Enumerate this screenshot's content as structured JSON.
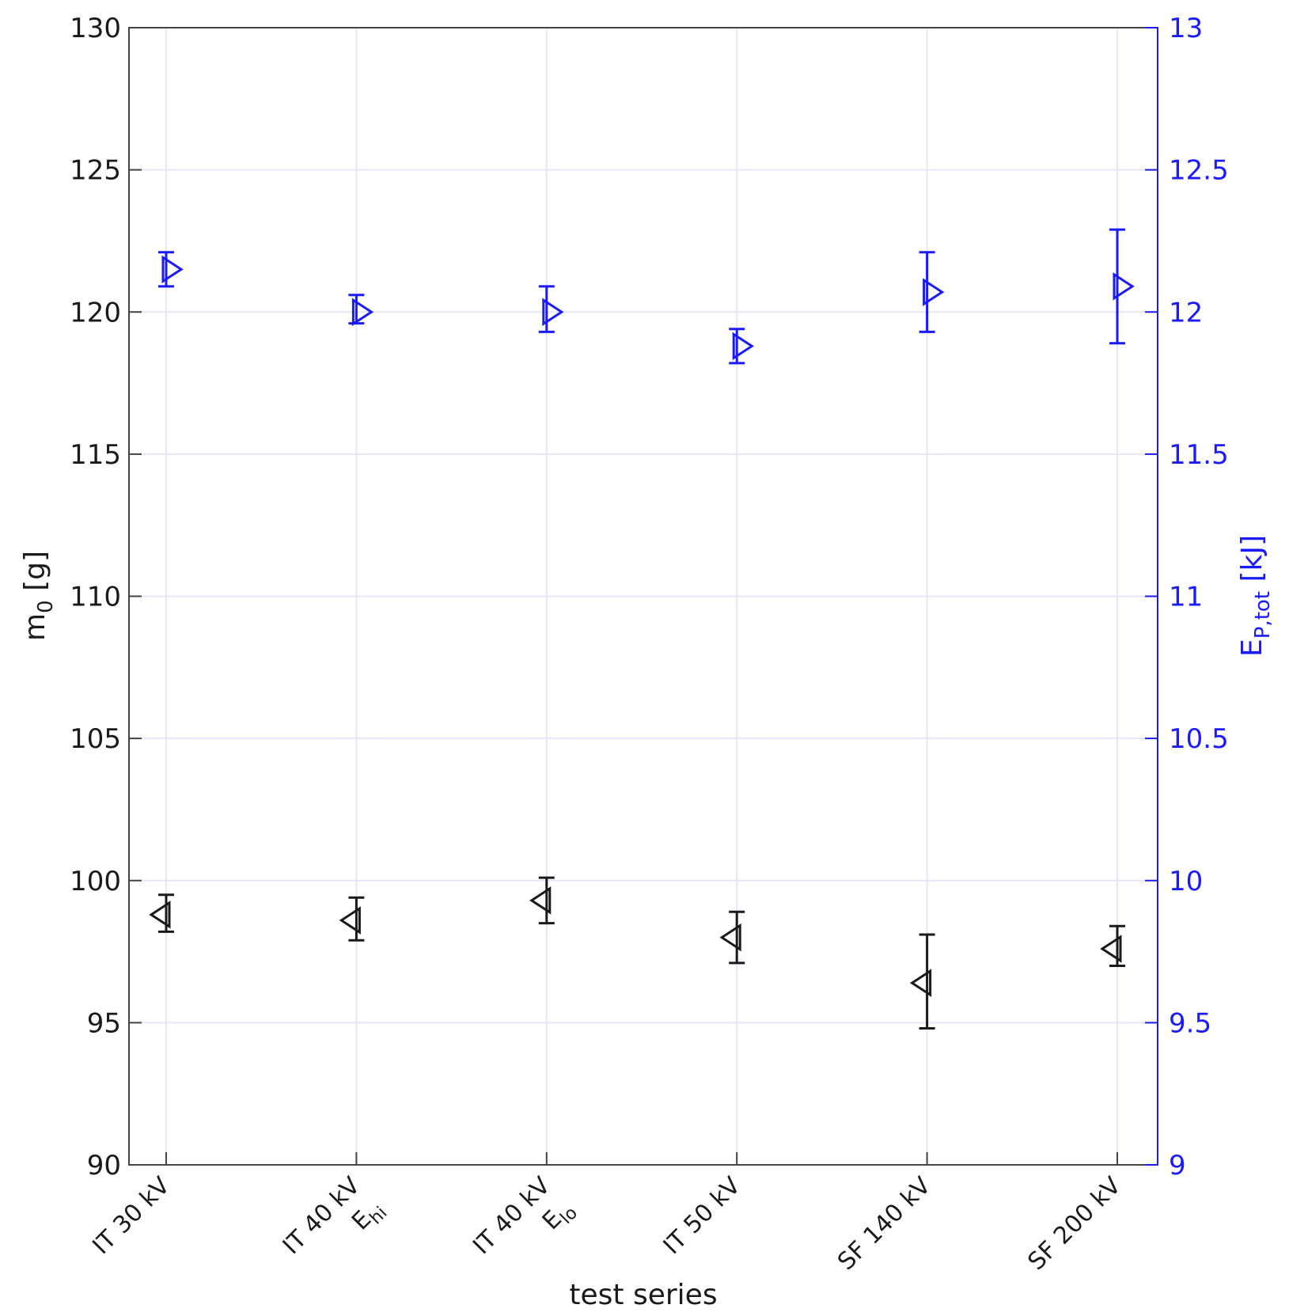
{
  "chart_data": {
    "type": "scatter",
    "xlabel": "test series",
    "categories": [
      {
        "main": "IT 30 kV",
        "sub_base": "",
        "sub_script": ""
      },
      {
        "main": "IT 40 kV",
        "sub_base": "E",
        "sub_script": "hi"
      },
      {
        "main": "IT 40 kV",
        "sub_base": "E",
        "sub_script": "lo"
      },
      {
        "main": "IT 50 kV",
        "sub_base": "",
        "sub_script": ""
      },
      {
        "main": "SF 140 kV",
        "sub_base": "",
        "sub_script": ""
      },
      {
        "main": "SF 200 kV",
        "sub_base": "",
        "sub_script": ""
      }
    ],
    "y_left": {
      "label_base": "m",
      "label_sub": "0",
      "label_unit": " [g]",
      "lim": [
        90,
        130
      ],
      "ticks": [
        90,
        95,
        100,
        105,
        110,
        115,
        120,
        125,
        130
      ],
      "tick_labels": [
        "90",
        "95",
        "100",
        "105",
        "110",
        "115",
        "120",
        "125",
        "130"
      ],
      "color": "#1a1a1a"
    },
    "y_right": {
      "label_base": "E",
      "label_sub": "P,tot",
      "label_unit": " [kJ]",
      "lim": [
        9,
        13
      ],
      "ticks": [
        9,
        9.5,
        10,
        10.5,
        11,
        11.5,
        12,
        12.5,
        13
      ],
      "tick_labels": [
        "9",
        "9.5",
        "10",
        "10.5",
        "11",
        "11.5",
        "12",
        "12.5",
        "13"
      ],
      "color": "#1a1aff"
    },
    "grid": true,
    "series": [
      {
        "axis": "left",
        "marker": "triangle-left",
        "color": "#1a1a1a",
        "values": [
          98.8,
          98.6,
          99.3,
          98.0,
          96.4,
          97.6
        ],
        "err_low": [
          98.2,
          97.9,
          98.5,
          97.1,
          94.8,
          97.0
        ],
        "err_high": [
          99.5,
          99.4,
          100.1,
          98.9,
          98.1,
          98.4
        ]
      },
      {
        "axis": "right",
        "marker": "triangle-right",
        "color": "#1a1aff",
        "values": [
          12.15,
          12.0,
          12.0,
          11.88,
          12.07,
          12.09
        ],
        "err_low": [
          12.09,
          11.96,
          11.93,
          11.82,
          11.93,
          11.89
        ],
        "err_high": [
          12.21,
          12.06,
          12.09,
          11.94,
          12.21,
          12.29
        ]
      }
    ]
  }
}
